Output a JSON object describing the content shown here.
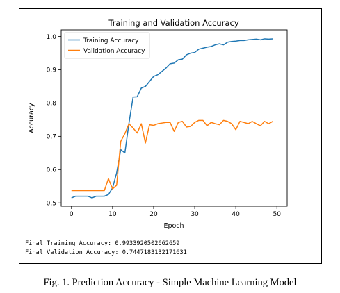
{
  "console": {
    "line1": "Final Training Accuracy: 0.9933920502662659",
    "line2": "Final Validation Accuracy: 0.7447183132171631"
  },
  "caption": "Fig. 1.  Prediction Accuracy - Simple Machine Learning Model",
  "chart_data": {
    "type": "line",
    "title": "Training and Validation Accuracy",
    "xlabel": "Epoch",
    "ylabel": "Accuracy",
    "xlim": [
      -2.5,
      52.5
    ],
    "ylim": [
      0.49,
      1.02
    ],
    "xticks": [
      0,
      10,
      20,
      30,
      40,
      50
    ],
    "yticks": [
      0.5,
      0.6,
      0.7,
      0.8,
      0.9,
      1.0
    ],
    "grid": false,
    "legend_position": "upper-left",
    "x": [
      0,
      1,
      2,
      3,
      4,
      5,
      6,
      7,
      8,
      9,
      10,
      11,
      12,
      13,
      14,
      15,
      16,
      17,
      18,
      19,
      20,
      21,
      22,
      23,
      24,
      25,
      26,
      27,
      28,
      29,
      30,
      31,
      32,
      33,
      34,
      35,
      36,
      37,
      38,
      39,
      40,
      41,
      42,
      43,
      44,
      45,
      46,
      47,
      48,
      49
    ],
    "series": [
      {
        "name": "Training Accuracy",
        "color": "#1f77b4",
        "values": [
          0.515,
          0.52,
          0.52,
          0.52,
          0.52,
          0.515,
          0.52,
          0.52,
          0.52,
          0.525,
          0.545,
          0.59,
          0.66,
          0.65,
          0.74,
          0.818,
          0.819,
          0.845,
          0.85,
          0.865,
          0.88,
          0.885,
          0.895,
          0.905,
          0.918,
          0.92,
          0.93,
          0.932,
          0.945,
          0.95,
          0.952,
          0.962,
          0.965,
          0.968,
          0.97,
          0.975,
          0.978,
          0.975,
          0.983,
          0.985,
          0.986,
          0.988,
          0.988,
          0.99,
          0.991,
          0.992,
          0.99,
          0.993,
          0.992,
          0.993
        ]
      },
      {
        "name": "Validation Accuracy",
        "color": "#ff7f0e",
        "values": [
          0.537,
          0.537,
          0.537,
          0.537,
          0.537,
          0.537,
          0.537,
          0.537,
          0.537,
          0.573,
          0.542,
          0.553,
          0.685,
          0.708,
          0.738,
          0.725,
          0.71,
          0.738,
          0.68,
          0.735,
          0.733,
          0.738,
          0.74,
          0.742,
          0.742,
          0.715,
          0.742,
          0.745,
          0.728,
          0.73,
          0.742,
          0.748,
          0.748,
          0.732,
          0.742,
          0.738,
          0.735,
          0.748,
          0.745,
          0.738,
          0.72,
          0.745,
          0.742,
          0.738,
          0.745,
          0.738,
          0.732,
          0.745,
          0.738,
          0.745
        ]
      }
    ]
  }
}
